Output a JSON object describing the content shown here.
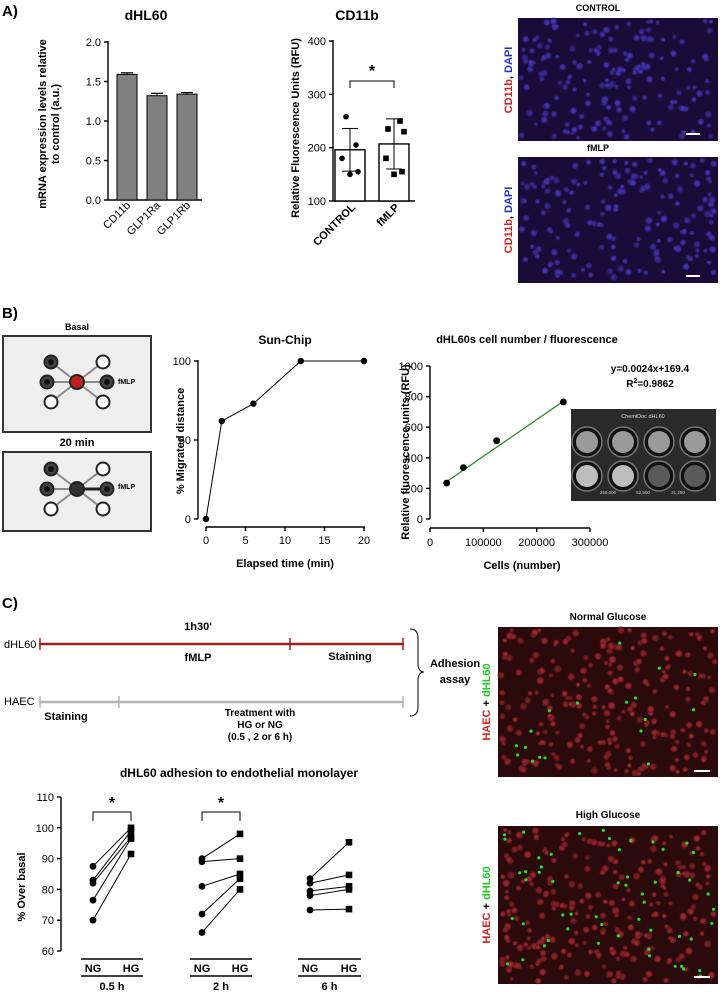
{
  "panels": {
    "a": "A)",
    "b": "B)",
    "c": "C)"
  },
  "chart_data": [
    {
      "id": "dhl60-bar",
      "type": "bar",
      "title": "dHL60",
      "ylabel": "mRNA expression levels relative to control (a.u.)",
      "ylabel_lines": [
        "mRNA expression levels relative",
        "to control (a.u.)"
      ],
      "ylim": [
        0,
        2.0
      ],
      "yticks": [
        "0.0",
        "0.5",
        "1.0",
        "1.5",
        "2.0"
      ],
      "ytick_values": [
        0,
        0.5,
        1.0,
        1.5,
        2.0
      ],
      "categories": [
        "CD11b",
        "GLP1Ra",
        "GLP1Rb"
      ],
      "values": [
        1.59,
        1.32,
        1.34
      ],
      "errors": [
        0.02,
        0.03,
        0.02
      ],
      "bar_color": "#808080"
    },
    {
      "id": "cd11b-bar",
      "type": "bar",
      "title": "CD11b",
      "ylabel": "Relative Fluorescence Units (RFU)",
      "ylim": [
        100,
        400
      ],
      "yticks": [
        "100",
        "200",
        "300",
        "400"
      ],
      "ytick_values": [
        100,
        200,
        300,
        400
      ],
      "categories": [
        "CONTROL",
        "fMLP"
      ],
      "values": [
        196,
        207
      ],
      "errors": [
        40,
        47
      ],
      "points": [
        [
          258,
          205,
          180,
          155,
          150
        ],
        [
          250,
          235,
          230,
          180,
          155,
          150
        ]
      ],
      "significance": "*"
    },
    {
      "id": "sunchip-line",
      "type": "line",
      "title": "Sun-Chip",
      "xlabel": "Elapsed time (min)",
      "ylabel": "% Migrated distance",
      "xlim": [
        0,
        20
      ],
      "ylim": [
        0,
        100
      ],
      "xticks": [
        "0",
        "5",
        "10",
        "15",
        "20"
      ],
      "xtick_values": [
        0,
        5,
        10,
        15,
        20
      ],
      "yticks": [
        "0",
        "50",
        "100"
      ],
      "ytick_values": [
        0,
        50,
        100
      ],
      "x": [
        0,
        2,
        6,
        12,
        20
      ],
      "y": [
        0,
        62,
        73,
        100,
        100
      ]
    },
    {
      "id": "cellnumber-scatter",
      "type": "scatter",
      "title": "dHL60s cell number / fluorescence",
      "xlabel": "Cells (number)",
      "ylabel": "Relative fluorescence units (RFU)",
      "xlim": [
        0,
        300000
      ],
      "ylim": [
        0,
        1000
      ],
      "xticks": [
        "0",
        "100000",
        "200000",
        "300000"
      ],
      "xtick_values": [
        0,
        100000,
        200000,
        300000
      ],
      "yticks": [
        "0",
        "200",
        "400",
        "600",
        "800",
        "1000"
      ],
      "ytick_values": [
        0,
        200,
        400,
        600,
        800,
        1000
      ],
      "x": [
        31250,
        62500,
        125000,
        250000
      ],
      "y": [
        235,
        336,
        512,
        765
      ],
      "fit": {
        "slope": 0.0024,
        "intercept": 169.4
      },
      "equation": "y=0.0024x+169.4",
      "r2_prefix": "R",
      "r2_exp": "2",
      "r2_value": "=0.9862",
      "fit_color": "#2e8b2e"
    },
    {
      "id": "adhesion-paired",
      "type": "line",
      "title": "dHL60 adhesion to endothelial monolayer",
      "ylabel": "% Over basal",
      "ylim": [
        60,
        110
      ],
      "yticks": [
        "60",
        "70",
        "80",
        "90",
        "100",
        "110"
      ],
      "ytick_values": [
        60,
        70,
        80,
        90,
        100,
        110
      ],
      "groups": [
        {
          "label": "0.5 h",
          "pair": [
            "NG",
            "HG"
          ],
          "ng": [
            87.5,
            83,
            82,
            76.5,
            70
          ],
          "hg": [
            100,
            99,
            97,
            96.5,
            91.5
          ],
          "significance": "*"
        },
        {
          "label": "2 h",
          "pair": [
            "NG",
            "HG"
          ],
          "ng": [
            90,
            89,
            81,
            72,
            66
          ],
          "hg": [
            98,
            90,
            85,
            83.5,
            80
          ],
          "significance": "*"
        },
        {
          "label": "6 h",
          "pair": [
            "NG",
            "HG"
          ],
          "ng": [
            83.5,
            82,
            79.5,
            78,
            73.3
          ],
          "hg": [
            95.3,
            84.7,
            81,
            80,
            73.6
          ],
          "significance": ""
        }
      ]
    }
  ],
  "micrographs_a": [
    {
      "label": "CONTROL",
      "stain_red": "CD11b",
      "stain_blue": "DAPI"
    },
    {
      "label": "fMLP",
      "stain_red": "CD11b",
      "stain_blue": "DAPI"
    }
  ],
  "chip": {
    "basal": "Basal",
    "time": "20 min",
    "marker": "fMLP"
  },
  "chemidoc": {
    "label": "ChemiDoc dHL60",
    "wells": [
      "250,000",
      "62,500",
      "31,250"
    ]
  },
  "timeline": {
    "dhl60": "dHL60",
    "haec": "HAEC",
    "duration": "1h30'",
    "fmlp": "fMLP",
    "staining_right": "Staining",
    "staining_left": "Staining",
    "treatment": [
      "Treatment with",
      "HG or NG",
      "(0.5 , 2 or 6 h)"
    ],
    "adhesion": [
      "Adhesion",
      "assay"
    ]
  },
  "micrographs_c": [
    {
      "label": "Normal Glucose",
      "stain_red": "HAEC",
      "plus": " + ",
      "stain_green": "dHL60"
    },
    {
      "label": "High Glucose",
      "stain_red": "HAEC",
      "plus": " + ",
      "stain_green": "dHL60"
    }
  ],
  "colors": {
    "dhl60_line": "#a01f1f",
    "haec_line": "#b4b4b4",
    "red_stain": "#d42020",
    "blue_stain": "#2233cc",
    "green_stain": "#22cc22"
  }
}
